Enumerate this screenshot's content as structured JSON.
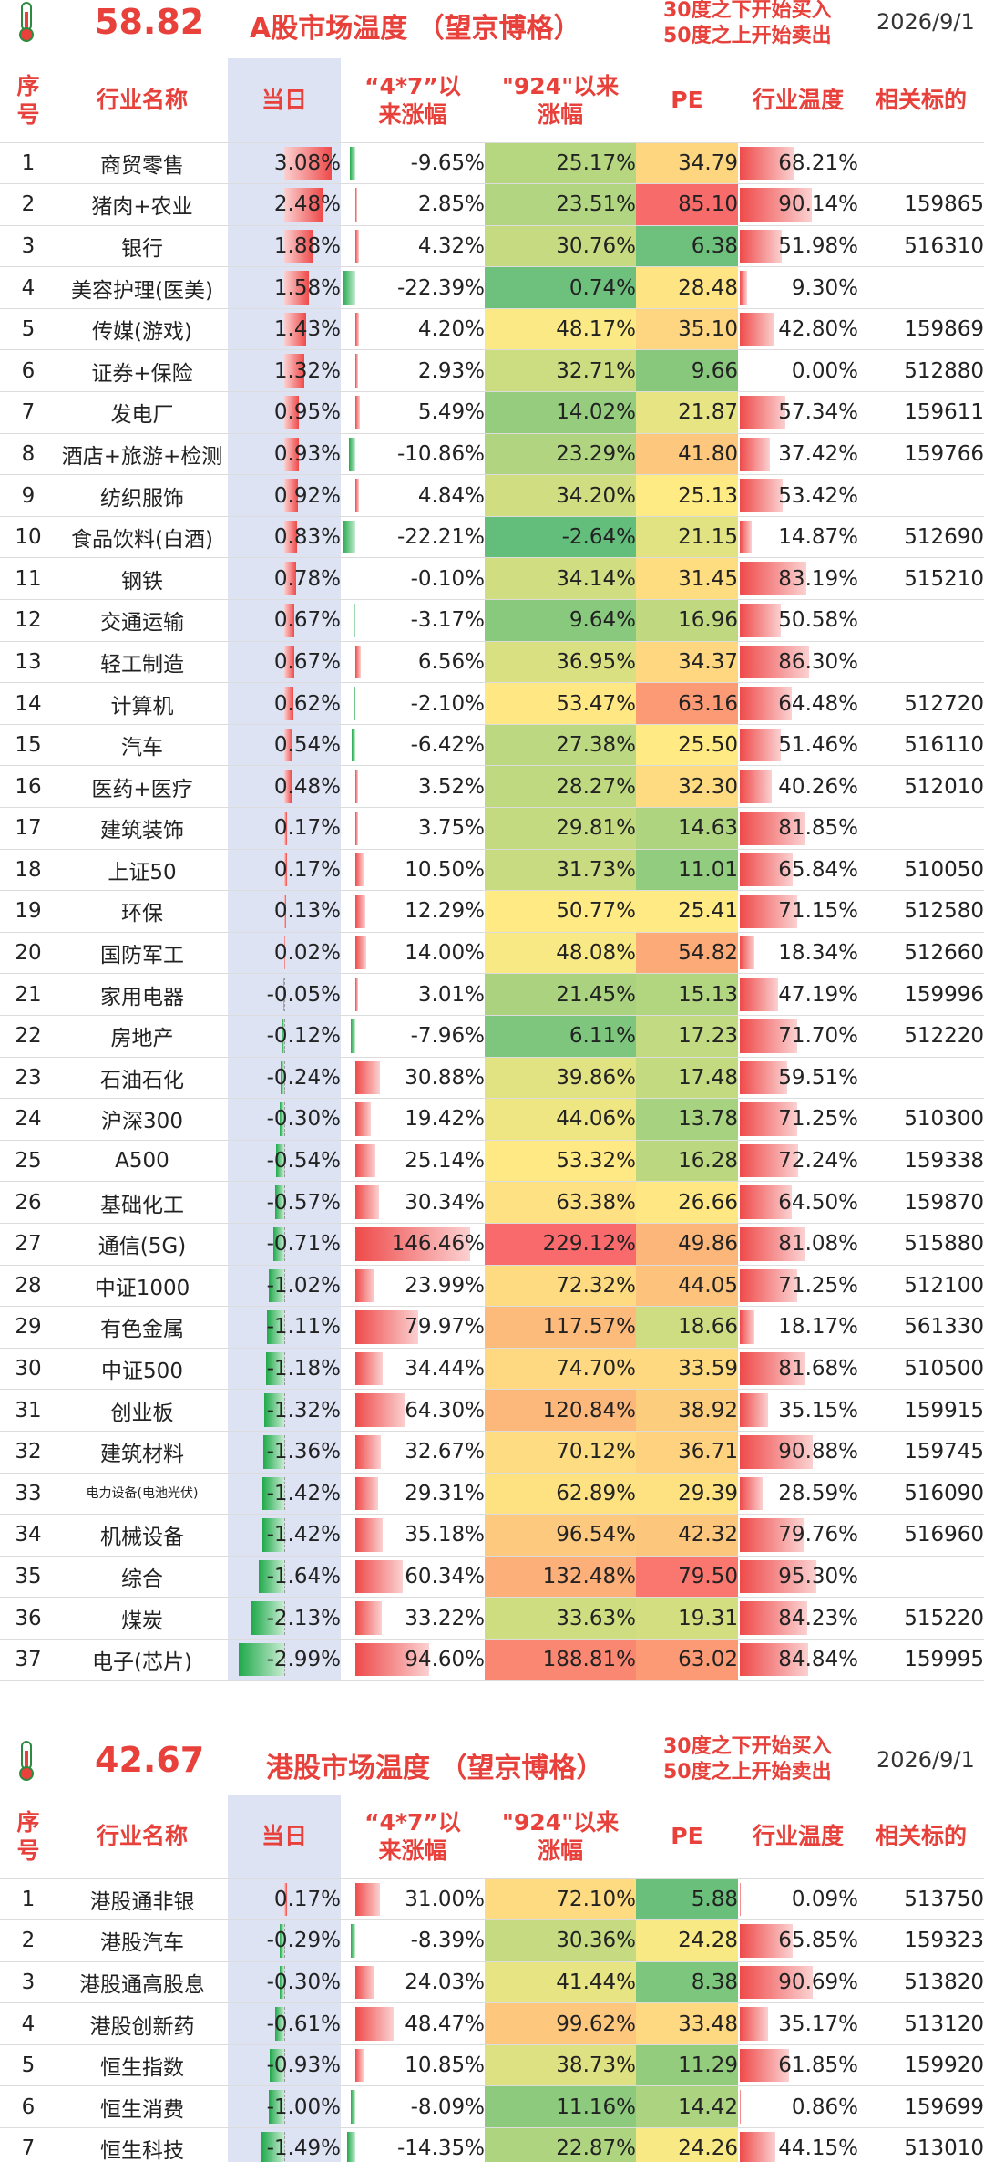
{
  "a_share": {
    "score": "58.82",
    "title": "A股市场温度 （望京博格）",
    "rule_buy": "30度之下开始买入",
    "rule_sell": "50度之上开始卖出",
    "date": "2026/9/1",
    "headers": [
      "序号",
      "行业名称",
      "当日",
      "“4*7”以来涨幅",
      "\"924\"以来涨幅",
      "PE",
      "行业温度",
      "相关标的"
    ],
    "rows": [
      {
        "no": "1",
        "name": "商贸零售",
        "day": "3.08%",
        "d": 3.08,
        "s47": "-9.65%",
        "v47": -9.65,
        "s924": "25.17%",
        "v924": 25.17,
        "pe": "34.79",
        "pev": 34.79,
        "heat": "68.21%",
        "h": 68.21,
        "code": ""
      },
      {
        "no": "2",
        "name": "猪肉+农业",
        "day": "2.48%",
        "d": 2.48,
        "s47": "2.85%",
        "v47": 2.85,
        "s924": "23.51%",
        "v924": 23.51,
        "pe": "85.10",
        "pev": 85.1,
        "heat": "90.14%",
        "h": 90.14,
        "code": "159865"
      },
      {
        "no": "3",
        "name": "银行",
        "day": "1.88%",
        "d": 1.88,
        "s47": "4.32%",
        "v47": 4.32,
        "s924": "30.76%",
        "v924": 30.76,
        "pe": "6.38",
        "pev": 6.38,
        "heat": "51.98%",
        "h": 51.98,
        "code": "516310"
      },
      {
        "no": "4",
        "name": "美容护理(医美)",
        "day": "1.58%",
        "d": 1.58,
        "s47": "-22.39%",
        "v47": -22.39,
        "s924": "0.74%",
        "v924": 0.74,
        "pe": "28.48",
        "pev": 28.48,
        "heat": "9.30%",
        "h": 9.3,
        "code": ""
      },
      {
        "no": "5",
        "name": "传媒(游戏)",
        "day": "1.43%",
        "d": 1.43,
        "s47": "4.20%",
        "v47": 4.2,
        "s924": "48.17%",
        "v924": 48.17,
        "pe": "35.10",
        "pev": 35.1,
        "heat": "42.80%",
        "h": 42.8,
        "code": "159869"
      },
      {
        "no": "6",
        "name": "证券+保险",
        "day": "1.32%",
        "d": 1.32,
        "s47": "2.93%",
        "v47": 2.93,
        "s924": "32.71%",
        "v924": 32.71,
        "pe": "9.66",
        "pev": 9.66,
        "heat": "0.00%",
        "h": 0.0,
        "code": "512880"
      },
      {
        "no": "7",
        "name": "发电厂",
        "day": "0.95%",
        "d": 0.95,
        "s47": "5.49%",
        "v47": 5.49,
        "s924": "14.02%",
        "v924": 14.02,
        "pe": "21.87",
        "pev": 21.87,
        "heat": "57.34%",
        "h": 57.34,
        "code": "159611"
      },
      {
        "no": "8",
        "name": "酒店+旅游+检测",
        "day": "0.93%",
        "d": 0.93,
        "s47": "-10.86%",
        "v47": -10.86,
        "s924": "23.29%",
        "v924": 23.29,
        "pe": "41.80",
        "pev": 41.8,
        "heat": "37.42%",
        "h": 37.42,
        "code": "159766"
      },
      {
        "no": "9",
        "name": "纺织服饰",
        "day": "0.92%",
        "d": 0.92,
        "s47": "4.84%",
        "v47": 4.84,
        "s924": "34.20%",
        "v924": 34.2,
        "pe": "25.13",
        "pev": 25.13,
        "heat": "53.42%",
        "h": 53.42,
        "code": ""
      },
      {
        "no": "10",
        "name": "食品饮料(白酒)",
        "day": "0.83%",
        "d": 0.83,
        "s47": "-22.21%",
        "v47": -22.21,
        "s924": "-2.64%",
        "v924": -2.64,
        "pe": "21.15",
        "pev": 21.15,
        "heat": "14.87%",
        "h": 14.87,
        "code": "512690"
      },
      {
        "no": "11",
        "name": "钢铁",
        "day": "0.78%",
        "d": 0.78,
        "s47": "-0.10%",
        "v47": -0.1,
        "s924": "34.14%",
        "v924": 34.14,
        "pe": "31.45",
        "pev": 31.45,
        "heat": "83.19%",
        "h": 83.19,
        "code": "515210"
      },
      {
        "no": "12",
        "name": "交通运输",
        "day": "0.67%",
        "d": 0.67,
        "s47": "-3.17%",
        "v47": -3.17,
        "s924": "9.64%",
        "v924": 9.64,
        "pe": "16.96",
        "pev": 16.96,
        "heat": "50.58%",
        "h": 50.58,
        "code": ""
      },
      {
        "no": "13",
        "name": "轻工制造",
        "day": "0.67%",
        "d": 0.67,
        "s47": "6.56%",
        "v47": 6.56,
        "s924": "36.95%",
        "v924": 36.95,
        "pe": "34.37",
        "pev": 34.37,
        "heat": "86.30%",
        "h": 86.3,
        "code": ""
      },
      {
        "no": "14",
        "name": "计算机",
        "day": "0.62%",
        "d": 0.62,
        "s47": "-2.10%",
        "v47": -2.1,
        "s924": "53.47%",
        "v924": 53.47,
        "pe": "63.16",
        "pev": 63.16,
        "heat": "64.48%",
        "h": 64.48,
        "code": "512720"
      },
      {
        "no": "15",
        "name": "汽车",
        "day": "0.54%",
        "d": 0.54,
        "s47": "-6.42%",
        "v47": -6.42,
        "s924": "27.38%",
        "v924": 27.38,
        "pe": "25.50",
        "pev": 25.5,
        "heat": "51.46%",
        "h": 51.46,
        "code": "516110"
      },
      {
        "no": "16",
        "name": "医药+医疗",
        "day": "0.48%",
        "d": 0.48,
        "s47": "3.52%",
        "v47": 3.52,
        "s924": "28.27%",
        "v924": 28.27,
        "pe": "32.30",
        "pev": 32.3,
        "heat": "40.26%",
        "h": 40.26,
        "code": "512010"
      },
      {
        "no": "17",
        "name": "建筑装饰",
        "day": "0.17%",
        "d": 0.17,
        "s47": "3.75%",
        "v47": 3.75,
        "s924": "29.81%",
        "v924": 29.81,
        "pe": "14.63",
        "pev": 14.63,
        "heat": "81.85%",
        "h": 81.85,
        "code": ""
      },
      {
        "no": "18",
        "name": "上证50",
        "day": "0.17%",
        "d": 0.17,
        "s47": "10.50%",
        "v47": 10.5,
        "s924": "31.73%",
        "v924": 31.73,
        "pe": "11.01",
        "pev": 11.01,
        "heat": "65.84%",
        "h": 65.84,
        "code": "510050"
      },
      {
        "no": "19",
        "name": "环保",
        "day": "0.13%",
        "d": 0.13,
        "s47": "12.29%",
        "v47": 12.29,
        "s924": "50.77%",
        "v924": 50.77,
        "pe": "25.41",
        "pev": 25.41,
        "heat": "71.15%",
        "h": 71.15,
        "code": "512580"
      },
      {
        "no": "20",
        "name": "国防军工",
        "day": "0.02%",
        "d": 0.02,
        "s47": "14.00%",
        "v47": 14.0,
        "s924": "48.08%",
        "v924": 48.08,
        "pe": "54.82",
        "pev": 54.82,
        "heat": "18.34%",
        "h": 18.34,
        "code": "512660"
      },
      {
        "no": "21",
        "name": "家用电器",
        "day": "-0.05%",
        "d": -0.05,
        "s47": "3.01%",
        "v47": 3.01,
        "s924": "21.45%",
        "v924": 21.45,
        "pe": "15.13",
        "pev": 15.13,
        "heat": "47.19%",
        "h": 47.19,
        "code": "159996"
      },
      {
        "no": "22",
        "name": "房地产",
        "day": "-0.12%",
        "d": -0.12,
        "s47": "-7.96%",
        "v47": -7.96,
        "s924": "6.11%",
        "v924": 6.11,
        "pe": "17.23",
        "pev": 17.23,
        "heat": "71.70%",
        "h": 71.7,
        "code": "512220"
      },
      {
        "no": "23",
        "name": "石油石化",
        "day": "-0.24%",
        "d": -0.24,
        "s47": "30.88%",
        "v47": 30.88,
        "s924": "39.86%",
        "v924": 39.86,
        "pe": "17.48",
        "pev": 17.48,
        "heat": "59.51%",
        "h": 59.51,
        "code": ""
      },
      {
        "no": "24",
        "name": "沪深300",
        "day": "-0.30%",
        "d": -0.3,
        "s47": "19.42%",
        "v47": 19.42,
        "s924": "44.06%",
        "v924": 44.06,
        "pe": "13.78",
        "pev": 13.78,
        "heat": "71.25%",
        "h": 71.25,
        "code": "510300"
      },
      {
        "no": "25",
        "name": "A500",
        "day": "-0.54%",
        "d": -0.54,
        "s47": "25.14%",
        "v47": 25.14,
        "s924": "53.32%",
        "v924": 53.32,
        "pe": "16.28",
        "pev": 16.28,
        "heat": "72.24%",
        "h": 72.24,
        "code": "159338"
      },
      {
        "no": "26",
        "name": "基础化工",
        "day": "-0.57%",
        "d": -0.57,
        "s47": "30.34%",
        "v47": 30.34,
        "s924": "63.38%",
        "v924": 63.38,
        "pe": "26.66",
        "pev": 26.66,
        "heat": "64.50%",
        "h": 64.5,
        "code": "159870"
      },
      {
        "no": "27",
        "name": "通信(5G)",
        "day": "-0.71%",
        "d": -0.71,
        "s47": "146.46%",
        "v47": 146.46,
        "s924": "229.12%",
        "v924": 229.12,
        "pe": "49.86",
        "pev": 49.86,
        "heat": "81.08%",
        "h": 81.08,
        "code": "515880"
      },
      {
        "no": "28",
        "name": "中证1000",
        "day": "-1.02%",
        "d": -1.02,
        "s47": "23.99%",
        "v47": 23.99,
        "s924": "72.32%",
        "v924": 72.32,
        "pe": "44.05",
        "pev": 44.05,
        "heat": "71.25%",
        "h": 71.25,
        "code": "512100"
      },
      {
        "no": "29",
        "name": "有色金属",
        "day": "-1.11%",
        "d": -1.11,
        "s47": "79.97%",
        "v47": 79.97,
        "s924": "117.57%",
        "v924": 117.57,
        "pe": "18.66",
        "pev": 18.66,
        "heat": "18.17%",
        "h": 18.17,
        "code": "561330"
      },
      {
        "no": "30",
        "name": "中证500",
        "day": "-1.18%",
        "d": -1.18,
        "s47": "34.44%",
        "v47": 34.44,
        "s924": "74.70%",
        "v924": 74.7,
        "pe": "33.59",
        "pev": 33.59,
        "heat": "81.68%",
        "h": 81.68,
        "code": "510500"
      },
      {
        "no": "31",
        "name": "创业板",
        "day": "-1.32%",
        "d": -1.32,
        "s47": "64.30%",
        "v47": 64.3,
        "s924": "120.84%",
        "v924": 120.84,
        "pe": "38.92",
        "pev": 38.92,
        "heat": "35.15%",
        "h": 35.15,
        "code": "159915"
      },
      {
        "no": "32",
        "name": "建筑材料",
        "day": "-1.36%",
        "d": -1.36,
        "s47": "32.67%",
        "v47": 32.67,
        "s924": "70.12%",
        "v924": 70.12,
        "pe": "36.71",
        "pev": 36.71,
        "heat": "90.88%",
        "h": 90.88,
        "code": "159745"
      },
      {
        "no": "33",
        "name": "电力设备(电池光伏)",
        "day": "-1.42%",
        "d": -1.42,
        "s47": "29.31%",
        "v47": 29.31,
        "s924": "62.89%",
        "v924": 62.89,
        "pe": "29.39",
        "pev": 29.39,
        "heat": "28.59%",
        "h": 28.59,
        "code": "516090"
      },
      {
        "no": "34",
        "name": "机械设备",
        "day": "-1.42%",
        "d": -1.42,
        "s47": "35.18%",
        "v47": 35.18,
        "s924": "96.54%",
        "v924": 96.54,
        "pe": "42.32",
        "pev": 42.32,
        "heat": "79.76%",
        "h": 79.76,
        "code": "516960"
      },
      {
        "no": "35",
        "name": "综合",
        "day": "-1.64%",
        "d": -1.64,
        "s47": "60.34%",
        "v47": 60.34,
        "s924": "132.48%",
        "v924": 132.48,
        "pe": "79.50",
        "pev": 79.5,
        "heat": "95.30%",
        "h": 95.3,
        "code": ""
      },
      {
        "no": "36",
        "name": "煤炭",
        "day": "-2.13%",
        "d": -2.13,
        "s47": "33.22%",
        "v47": 33.22,
        "s924": "33.63%",
        "v924": 33.63,
        "pe": "19.31",
        "pev": 19.31,
        "heat": "84.23%",
        "h": 84.23,
        "code": "515220"
      },
      {
        "no": "37",
        "name": "电子(芯片)",
        "day": "-2.99%",
        "d": -2.99,
        "s47": "94.60%",
        "v47": 94.6,
        "s924": "188.81%",
        "v924": 188.81,
        "pe": "63.02",
        "pev": 63.02,
        "heat": "84.84%",
        "h": 84.84,
        "code": "159995"
      }
    ]
  },
  "hk_share": {
    "score": "42.67",
    "title": "港股市场温度 （望京博格）",
    "rule_buy": "30度之下开始买入",
    "rule_sell": "50度之上开始卖出",
    "date": "2026/9/1",
    "headers": [
      "序号",
      "行业名称",
      "当日",
      "“4*7”以来涨幅",
      "\"924\"以来涨幅",
      "PE",
      "行业温度",
      "相关标的"
    ],
    "rows": [
      {
        "no": "1",
        "name": "港股通非银",
        "day": "0.17%",
        "d": 0.17,
        "s47": "31.00%",
        "v47": 31.0,
        "s924": "72.10%",
        "v924": 72.1,
        "pe": "5.88",
        "pev": 5.88,
        "heat": "0.09%",
        "h": 0.09,
        "code": "513750"
      },
      {
        "no": "2",
        "name": "港股汽车",
        "day": "-0.29%",
        "d": -0.29,
        "s47": "-8.39%",
        "v47": -8.39,
        "s924": "30.36%",
        "v924": 30.36,
        "pe": "24.28",
        "pev": 24.28,
        "heat": "65.85%",
        "h": 65.85,
        "code": "159323"
      },
      {
        "no": "3",
        "name": "港股通高股息",
        "day": "-0.30%",
        "d": -0.3,
        "s47": "24.03%",
        "v47": 24.03,
        "s924": "41.44%",
        "v924": 41.44,
        "pe": "8.38",
        "pev": 8.38,
        "heat": "90.69%",
        "h": 90.69,
        "code": "513820"
      },
      {
        "no": "4",
        "name": "港股创新药",
        "day": "-0.61%",
        "d": -0.61,
        "s47": "48.47%",
        "v47": 48.47,
        "s924": "99.62%",
        "v924": 99.62,
        "pe": "33.48",
        "pev": 33.48,
        "heat": "35.17%",
        "h": 35.17,
        "code": "513120"
      },
      {
        "no": "5",
        "name": "恒生指数",
        "day": "-0.93%",
        "d": -0.93,
        "s47": "10.85%",
        "v47": 10.85,
        "s924": "38.73%",
        "v924": 38.73,
        "pe": "11.29",
        "pev": 11.29,
        "heat": "61.85%",
        "h": 61.85,
        "code": "159920"
      },
      {
        "no": "6",
        "name": "恒生消费",
        "day": "-1.00%",
        "d": -1.0,
        "s47": "-8.09%",
        "v47": -8.09,
        "s924": "11.16%",
        "v924": 11.16,
        "pe": "14.42",
        "pev": 14.42,
        "heat": "0.86%",
        "h": 0.86,
        "code": "159699"
      },
      {
        "no": "7",
        "name": "恒生科技",
        "day": "-1.49%",
        "d": -1.49,
        "s47": "-14.35%",
        "v47": -14.35,
        "s924": "22.87%",
        "v924": 22.87,
        "pe": "24.26",
        "pev": 24.26,
        "heat": "44.15%",
        "h": 44.15,
        "code": "513010"
      }
    ]
  }
}
